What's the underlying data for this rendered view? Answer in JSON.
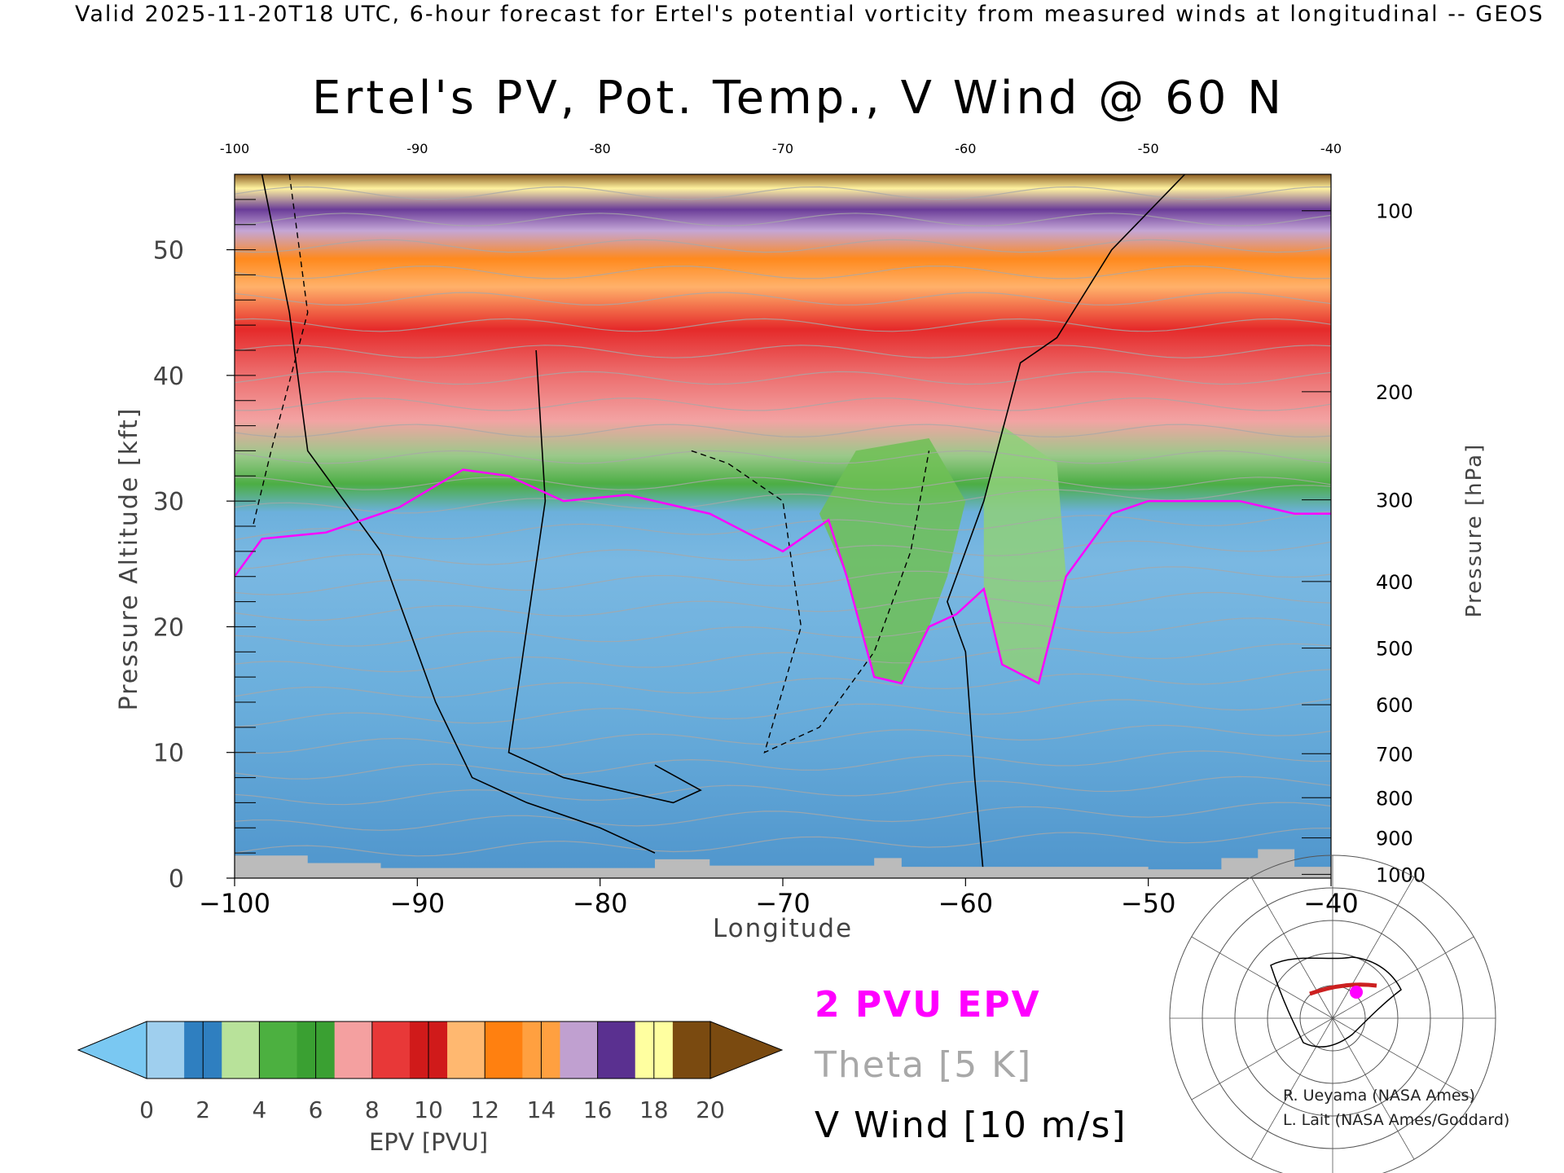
{
  "header": {
    "valid_line": "Valid 2025-11-20T18 UTC, 6-hour forecast for Ertel's potential vorticity from measured winds at longitudinal -- GEOS",
    "title": "Ertel's PV, Pot. Temp., V Wind @ 60 N"
  },
  "legend": {
    "pv_line": "2 PVU EPV",
    "theta_line": "Theta [5 K]",
    "wind_line": "V Wind [10 m/s]",
    "colors": {
      "pv": "#ff00ff",
      "theta": "#a8a8a8",
      "wind": "#000000"
    }
  },
  "credits": [
    "R. Ueyama (NASA Ames)",
    "L. Lait (NASA Ames/Goddard)"
  ],
  "colorbar": {
    "label": "EPV [PVU]",
    "ticks": [
      "0",
      "2",
      "4",
      "6",
      "8",
      "10",
      "12",
      "14",
      "16",
      "18",
      "20"
    ],
    "under_color": "#7ac8f2",
    "over_color": "#7a4a10",
    "colors": [
      "#9fcfee",
      "#2f7fc0",
      "#b8e29a",
      "#4cb040",
      "#3aa032",
      "#f4a0a0",
      "#e83838",
      "#d01a1a",
      "#ffb870",
      "#ff8010",
      "#ffa040",
      "#c0a0d0",
      "#5a3090",
      "#ffffa0",
      "#7a4a10"
    ]
  },
  "chart_data": {
    "type": "heatmap",
    "title": "Ertel's PV, Pot. Temp., V Wind @ 60 N",
    "xlabel": "Longitude",
    "ylabel": "Pressure Altitude [kft]",
    "y2label": "Pressure [hPa]",
    "xlim": [
      -100,
      -40
    ],
    "ylim": [
      0,
      56
    ],
    "x_ticks": [
      -100,
      -90,
      -80,
      -70,
      -60,
      -50,
      -40
    ],
    "y_ticks": [
      0,
      10,
      20,
      30,
      40,
      50
    ],
    "top_x_ticks": [
      -100,
      -90,
      -80,
      -70,
      -60,
      -50,
      -40
    ],
    "pressure_ticks": [
      {
        "label": "100",
        "kft": 53.1
      },
      {
        "label": "200",
        "kft": 38.7
      },
      {
        "label": "300",
        "kft": 30.1
      },
      {
        "label": "400",
        "kft": 23.6
      },
      {
        "label": "500",
        "kft": 18.3
      },
      {
        "label": "600",
        "kft": 13.8
      },
      {
        "label": "700",
        "kft": 9.9
      },
      {
        "label": "800",
        "kft": 6.4
      },
      {
        "label": "900",
        "kft": 3.2
      },
      {
        "label": "1000",
        "kft": 0.3
      }
    ],
    "tropopause_2pvu": [
      {
        "x": -100,
        "y": 24
      },
      {
        "x": -98.5,
        "y": 27
      },
      {
        "x": -95,
        "y": 27.5
      },
      {
        "x": -91,
        "y": 29.5
      },
      {
        "x": -87.5,
        "y": 32.5
      },
      {
        "x": -85,
        "y": 32
      },
      {
        "x": -82,
        "y": 30
      },
      {
        "x": -78.5,
        "y": 30.5
      },
      {
        "x": -74,
        "y": 29
      },
      {
        "x": -70,
        "y": 26
      },
      {
        "x": -67.5,
        "y": 28.5
      },
      {
        "x": -66.5,
        "y": 24
      },
      {
        "x": -65,
        "y": 16
      },
      {
        "x": -63.5,
        "y": 15.5
      },
      {
        "x": -62,
        "y": 20
      },
      {
        "x": -60.5,
        "y": 21
      },
      {
        "x": -59,
        "y": 23
      },
      {
        "x": -58,
        "y": 17
      },
      {
        "x": -56,
        "y": 15.5
      },
      {
        "x": -54.5,
        "y": 24
      },
      {
        "x": -52,
        "y": 29
      },
      {
        "x": -50,
        "y": 30
      },
      {
        "x": -45,
        "y": 30
      },
      {
        "x": -42,
        "y": 29
      },
      {
        "x": -40,
        "y": 29
      }
    ],
    "vwind_contours": [
      {
        "label": "0",
        "style": "solid"
      },
      {
        "label": "-10",
        "style": "dashed"
      },
      {
        "label": "10",
        "style": "dashed"
      }
    ],
    "grid": false
  }
}
